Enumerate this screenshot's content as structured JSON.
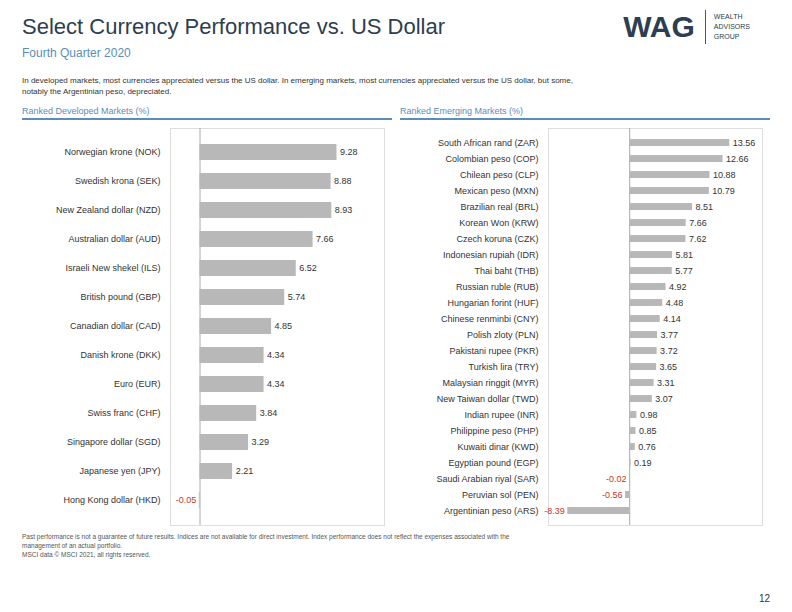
{
  "title": "Select Currency Performance vs. US Dollar",
  "subtitle": "Fourth Quarter 2020",
  "annotations": [
    "In developed markets, most currencies appreciated versus the US dollar. In emerging markets, most currencies appreciated versus the US dollar, but some,\nnotably the Argentinian peso, depreciated.",
    "WAG",
    "WEALTH\nADVISORS\nGROUP",
    "Past performance is not a guarantee of future results. Indices are not available for direct investment. Index performance does not reflect the expenses associated with the\nmanagement of an actual portfolio.\nMSCI data © MSCI 2021, all rights reserved.",
    "12"
  ],
  "chart_data": [
    {
      "type": "bar",
      "orientation": "horizontal",
      "title": "Ranked Developed Markets (%)",
      "categories": [
        "Norwegian krone (NOK)",
        "Swedish krona (SEK)",
        "New Zealand dollar (NZD)",
        "Australian dollar (AUD)",
        "Israeli New shekel (ILS)",
        "British pound (GBP)",
        "Canadian dollar (CAD)",
        "Danish krone (DKK)",
        "Euro (EUR)",
        "Swiss franc (CHF)",
        "Singapore dollar (SGD)",
        "Japanese yen (JPY)",
        "Hong Kong dollar (HKD)"
      ],
      "values": [
        9.28,
        8.88,
        8.93,
        7.66,
        6.52,
        5.74,
        4.85,
        4.34,
        4.34,
        3.84,
        3.29,
        2.21,
        -0.05
      ],
      "color": "#b8b8b8",
      "xlim": [
        -2.0,
        12.5
      ],
      "tick_labels": "y",
      "data_labels": true,
      "grid": false
    },
    {
      "type": "bar",
      "orientation": "horizontal",
      "title": "Ranked Emerging Markets (%)",
      "categories": [
        "South African rand (ZAR)",
        "Colombian peso (COP)",
        "Chilean peso (CLP)",
        "Mexican peso (MXN)",
        "Brazilian real (BRL)",
        "Korean Won (KRW)",
        "Czech koruna (CZK)",
        "Indonesian rupiah (IDR)",
        "Thai baht (THB)",
        "Russian ruble (RUB)",
        "Hungarian forint (HUF)",
        "Chinese renminbi (CNY)",
        "Polish zloty (PLN)",
        "Pakistani rupee (PKR)",
        "Turkish lira (TRY)",
        "Malaysian ringgit (MYR)",
        "New Taiwan dollar (TWD)",
        "Indian rupee (INR)",
        "Philippine peso (PHP)",
        "Kuwaiti dinar (KWD)",
        "Egyptian pound (EGP)",
        "Saudi Arabian riyal (SAR)",
        "Peruvian sol (PEN)",
        "Argentinian peso (ARS)"
      ],
      "values": [
        13.56,
        12.66,
        10.88,
        10.79,
        8.51,
        7.66,
        7.62,
        5.81,
        5.77,
        4.92,
        4.48,
        4.14,
        3.77,
        3.72,
        3.65,
        3.31,
        3.07,
        0.98,
        0.85,
        0.76,
        0.19,
        -0.02,
        -0.56,
        -8.39
      ],
      "color": "#b8b8b8",
      "xlim": [
        -11.0,
        18.0
      ],
      "tick_labels": "y",
      "data_labels": true,
      "grid": false
    }
  ]
}
